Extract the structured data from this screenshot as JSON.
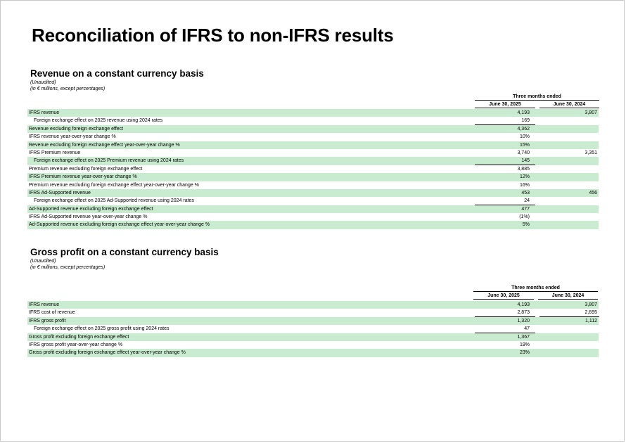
{
  "page_title": "Reconciliation of IFRS to non-IFRS results",
  "revenue_section": {
    "title": "Revenue on a constant currency basis",
    "unaudited": "(Unaudited)",
    "units": "(in € millions, except percentages)",
    "period_header": "Three months ended",
    "col1": "June 30, 2025",
    "col2": "June 30, 2024",
    "rows": [
      {
        "label": "IFRS revenue",
        "v1": "4,193",
        "v2": "3,807",
        "shaded": true,
        "indent": false,
        "underline": false
      },
      {
        "label": "Foreign exchange effect on 2025 revenue using 2024 rates",
        "v1": "169",
        "v2": "",
        "shaded": false,
        "indent": true,
        "underline": true
      },
      {
        "label": "Revenue excluding foreign exchange effect",
        "v1": "4,362",
        "v2": "",
        "shaded": true,
        "indent": false,
        "underline": false
      },
      {
        "label": "IFRS revenue year-over-year change %",
        "v1": "10%",
        "v2": "",
        "shaded": false,
        "indent": false,
        "underline": false
      },
      {
        "label": "Revenue excluding foreign exchange effect year-over-year change %",
        "v1": "15%",
        "v2": "",
        "shaded": true,
        "indent": false,
        "underline": false
      },
      {
        "label": "IFRS Premium revenue",
        "v1": "3,740",
        "v2": "3,351",
        "shaded": false,
        "indent": false,
        "underline": false
      },
      {
        "label": "Foreign exchange effect on 2025 Premium revenue using 2024 rates",
        "v1": "145",
        "v2": "",
        "shaded": true,
        "indent": true,
        "underline": true
      },
      {
        "label": "Premium revenue excluding foreign exchange effect",
        "v1": "3,885",
        "v2": "",
        "shaded": false,
        "indent": false,
        "underline": false
      },
      {
        "label": "IFRS Premium revenue year-over-year change %",
        "v1": "12%",
        "v2": "",
        "shaded": true,
        "indent": false,
        "underline": false
      },
      {
        "label": "Premium revenue excluding foreign exchange effect year-over-year change %",
        "v1": "16%",
        "v2": "",
        "shaded": false,
        "indent": false,
        "underline": false
      },
      {
        "label": "IFRS Ad-Supported revenue",
        "v1": "453",
        "v2": "456",
        "shaded": true,
        "indent": false,
        "underline": false
      },
      {
        "label": "Foreign exchange effect on 2025 Ad-Supported revenue using 2024 rates",
        "v1": "24",
        "v2": "",
        "shaded": false,
        "indent": true,
        "underline": true
      },
      {
        "label": "Ad-Supported revenue excluding foreign exchange effect",
        "v1": "477",
        "v2": "",
        "shaded": true,
        "indent": false,
        "underline": false
      },
      {
        "label": "IFRS Ad-Supported revenue year-over-year change %",
        "v1": "(1%)",
        "v2": "",
        "shaded": false,
        "indent": false,
        "underline": false
      },
      {
        "label": "Ad-Supported revenue excluding foreign exchange effect year-over-year change %",
        "v1": "5%",
        "v2": "",
        "shaded": true,
        "indent": false,
        "underline": false
      }
    ]
  },
  "gross_profit_section": {
    "title": "Gross profit on a constant currency basis",
    "unaudited": "(Unaudited)",
    "units": "(in € millions, except percentages)",
    "period_header": "Three months ended",
    "col1": "June 30, 2025",
    "col2": "June 30, 2024",
    "rows": [
      {
        "label": "IFRS revenue",
        "v1": "4,193",
        "v2": "3,807",
        "shaded": true,
        "indent": false,
        "underline": false
      },
      {
        "label": "IFRS cost of revenue",
        "v1": "2,873",
        "v2": "2,695",
        "shaded": false,
        "indent": false,
        "underline": true
      },
      {
        "label": "IFRS gross profit",
        "v1": "1,320",
        "v2": "1,112",
        "shaded": true,
        "indent": false,
        "underline": false
      },
      {
        "label": "Foreign exchange effect on 2025 gross profit using 2024 rates",
        "v1": "47",
        "v2": "",
        "shaded": false,
        "indent": true,
        "underline": true
      },
      {
        "label": "Gross profit excluding foreign exchange effect",
        "v1": "1,367",
        "v2": "",
        "shaded": true,
        "indent": false,
        "underline": false
      },
      {
        "label": "IFRS gross profit year-over-year change %",
        "v1": "19%",
        "v2": "",
        "shaded": false,
        "indent": false,
        "underline": false
      },
      {
        "label": "Gross profit excluding foreign exchange effect year-over-year change %",
        "v1": "23%",
        "v2": "",
        "shaded": true,
        "indent": false,
        "underline": false
      }
    ]
  }
}
